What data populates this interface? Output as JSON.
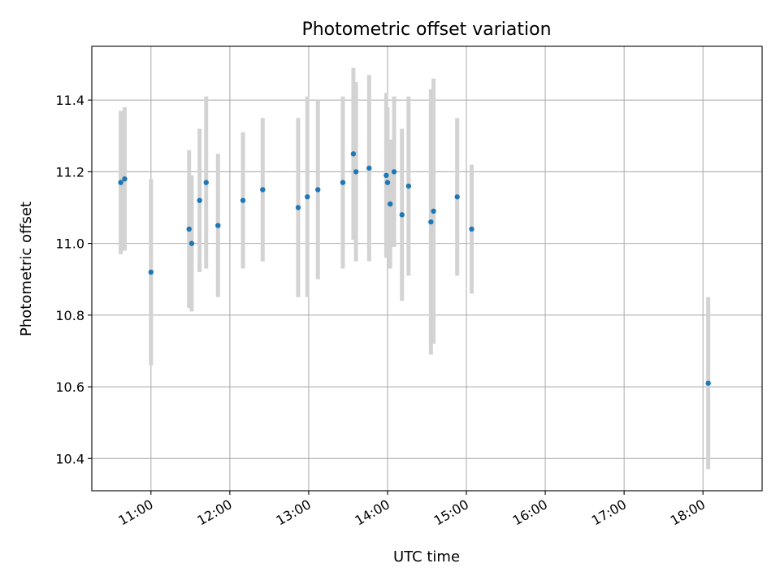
{
  "chart_data": {
    "type": "scatter",
    "title": "Photometric offset variation",
    "xlabel": "UTC time",
    "ylabel": "Photometric offset",
    "xlim": [
      "10:15",
      "18:45"
    ],
    "ylim": [
      10.31,
      11.55
    ],
    "x_ticks": [
      "11:00",
      "12:00",
      "13:00",
      "14:00",
      "15:00",
      "16:00",
      "17:00",
      "18:00"
    ],
    "y_ticks": [
      10.4,
      10.6,
      10.8,
      11.0,
      11.2,
      11.4
    ],
    "grid": true,
    "marker_color": "#1f77b4",
    "errorbar_color": "#d3d3d3",
    "points": [
      {
        "x": "10:37",
        "y": 11.17,
        "err": 0.2
      },
      {
        "x": "10:40",
        "y": 11.18,
        "err": 0.2
      },
      {
        "x": "11:00",
        "y": 10.92,
        "err": 0.26
      },
      {
        "x": "11:29",
        "y": 11.04,
        "err": 0.22
      },
      {
        "x": "11:31",
        "y": 11.0,
        "err": 0.19
      },
      {
        "x": "11:37",
        "y": 11.12,
        "err": 0.2
      },
      {
        "x": "11:42",
        "y": 11.17,
        "err": 0.24
      },
      {
        "x": "11:51",
        "y": 11.05,
        "err": 0.2
      },
      {
        "x": "12:10",
        "y": 11.12,
        "err": 0.19
      },
      {
        "x": "12:25",
        "y": 11.15,
        "err": 0.2
      },
      {
        "x": "12:52",
        "y": 11.1,
        "err": 0.25
      },
      {
        "x": "12:59",
        "y": 11.13,
        "err": 0.28
      },
      {
        "x": "13:07",
        "y": 11.15,
        "err": 0.25
      },
      {
        "x": "13:26",
        "y": 11.17,
        "err": 0.24
      },
      {
        "x": "13:34",
        "y": 11.25,
        "err": 0.24
      },
      {
        "x": "13:36",
        "y": 11.2,
        "err": 0.25
      },
      {
        "x": "13:46",
        "y": 11.21,
        "err": 0.26
      },
      {
        "x": "13:59",
        "y": 11.19,
        "err": 0.23
      },
      {
        "x": "14:00",
        "y": 11.17,
        "err": 0.21
      },
      {
        "x": "14:02",
        "y": 11.11,
        "err": 0.18
      },
      {
        "x": "14:05",
        "y": 11.2,
        "err": 0.21
      },
      {
        "x": "14:11",
        "y": 11.08,
        "err": 0.24
      },
      {
        "x": "14:16",
        "y": 11.16,
        "err": 0.25
      },
      {
        "x": "14:33",
        "y": 11.06,
        "err": 0.37
      },
      {
        "x": "14:35",
        "y": 11.09,
        "err": 0.37
      },
      {
        "x": "14:53",
        "y": 11.13,
        "err": 0.22
      },
      {
        "x": "15:04",
        "y": 11.04,
        "err": 0.18
      },
      {
        "x": "18:04",
        "y": 10.61,
        "err": 0.24
      }
    ]
  }
}
